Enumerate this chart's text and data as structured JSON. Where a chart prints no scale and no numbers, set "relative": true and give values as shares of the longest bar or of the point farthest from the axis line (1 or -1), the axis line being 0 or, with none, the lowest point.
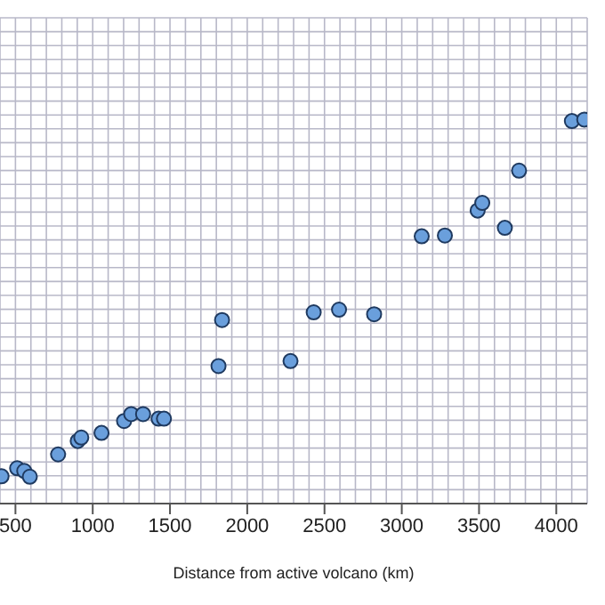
{
  "chart_data": {
    "type": "scatter",
    "xlabel": "Distance from active volcano (km)",
    "relative": true,
    "xlim": [
      400,
      4200
    ],
    "xticks": [
      500,
      1000,
      1500,
      2000,
      2500,
      3000,
      3500,
      4000
    ],
    "grid": true,
    "marker": "circle",
    "tick_labels": "x",
    "x": [
      410,
      511,
      557,
      593,
      776,
      903,
      926,
      1057,
      1203,
      1249,
      1326,
      1426,
      1461,
      1814,
      1837,
      2280,
      2430,
      2594,
      2821,
      3129,
      3279,
      3491,
      3521,
      3667,
      3759,
      4101,
      4181
    ],
    "series": [
      {
        "color": "#6a9fdc",
        "values": [
          0.071,
          0.092,
          0.085,
          0.07,
          0.128,
          0.163,
          0.172,
          0.184,
          0.215,
          0.233,
          0.233,
          0.221,
          0.221,
          0.358,
          0.478,
          0.371,
          0.498,
          0.505,
          0.493,
          0.696,
          0.698,
          0.763,
          0.783,
          0.718,
          0.867,
          0.996,
          1
        ]
      }
    ]
  }
}
